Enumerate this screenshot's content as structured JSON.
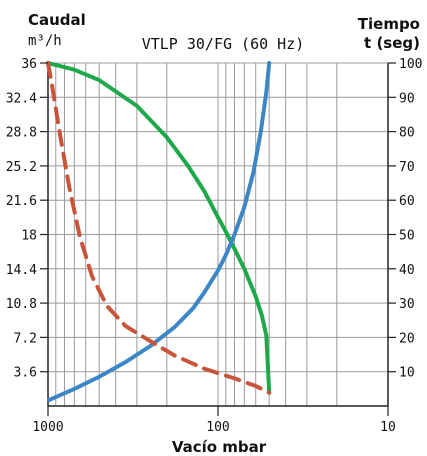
{
  "chart_data": {
    "type": "line",
    "title": "VTLP 30/FG (60 Hz)",
    "xlabel": "Vacío mbar",
    "x_scale": "log",
    "x_reversed": true,
    "xlim": [
      1000,
      10
    ],
    "x_ticks": [
      1000,
      100,
      10
    ],
    "ylabel_left_line1": "Caudal",
    "ylabel_left_line2": "m³/h",
    "ylim_left": [
      0,
      36
    ],
    "y_ticks_left": [
      "3.6",
      "7.2",
      "10.8",
      "14.4",
      "18",
      "21.6",
      "25.2",
      "28.8",
      "32.4",
      "36"
    ],
    "ylabel_right_line1": "Tiempo",
    "ylabel_right_line2": "t (seg)",
    "ylim_right": [
      0,
      100
    ],
    "y_ticks_right": [
      "10",
      "20",
      "30",
      "40",
      "50",
      "60",
      "70",
      "80",
      "90",
      "100"
    ],
    "grid": true,
    "series": [
      {
        "color": "#1fa84a",
        "dashed": false,
        "axis": "left",
        "points": [
          [
            1000,
            36
          ],
          [
            700,
            35.3
          ],
          [
            500,
            34.2
          ],
          [
            300,
            31.5
          ],
          [
            200,
            28.2
          ],
          [
            150,
            25.2
          ],
          [
            120,
            22.5
          ],
          [
            100,
            19.8
          ],
          [
            90,
            18.3
          ],
          [
            80,
            16.5
          ],
          [
            70,
            14.4
          ],
          [
            60,
            11.5
          ],
          [
            55,
            9.4
          ],
          [
            52,
            7.4
          ],
          [
            50,
            1.4
          ]
        ]
      },
      {
        "color": "#3d86c6",
        "dashed": false,
        "axis": "right",
        "points": [
          [
            980,
            1.8
          ],
          [
            700,
            5.0
          ],
          [
            500,
            8.5
          ],
          [
            350,
            12.8
          ],
          [
            250,
            17.5
          ],
          [
            180,
            23.0
          ],
          [
            140,
            28.5
          ],
          [
            120,
            33.2
          ],
          [
            100,
            39.5
          ],
          [
            90,
            44.0
          ],
          [
            80,
            50.0
          ],
          [
            70,
            58.0
          ],
          [
            62,
            68.0
          ],
          [
            56,
            80.0
          ],
          [
            52,
            91.5
          ],
          [
            50,
            100.0
          ]
        ]
      },
      {
        "color": "#c8553a",
        "dashed": true,
        "axis": "left",
        "points": [
          [
            1000,
            36
          ],
          [
            950,
            33.8
          ],
          [
            850,
            28.5
          ],
          [
            750,
            23.0
          ],
          [
            650,
            17.8
          ],
          [
            550,
            13.6
          ],
          [
            450,
            10.5
          ],
          [
            350,
            8.4
          ],
          [
            250,
            6.8
          ],
          [
            180,
            5.3
          ],
          [
            120,
            3.9
          ],
          [
            80,
            2.9
          ],
          [
            60,
            2.1
          ],
          [
            50,
            1.4
          ]
        ]
      }
    ]
  }
}
